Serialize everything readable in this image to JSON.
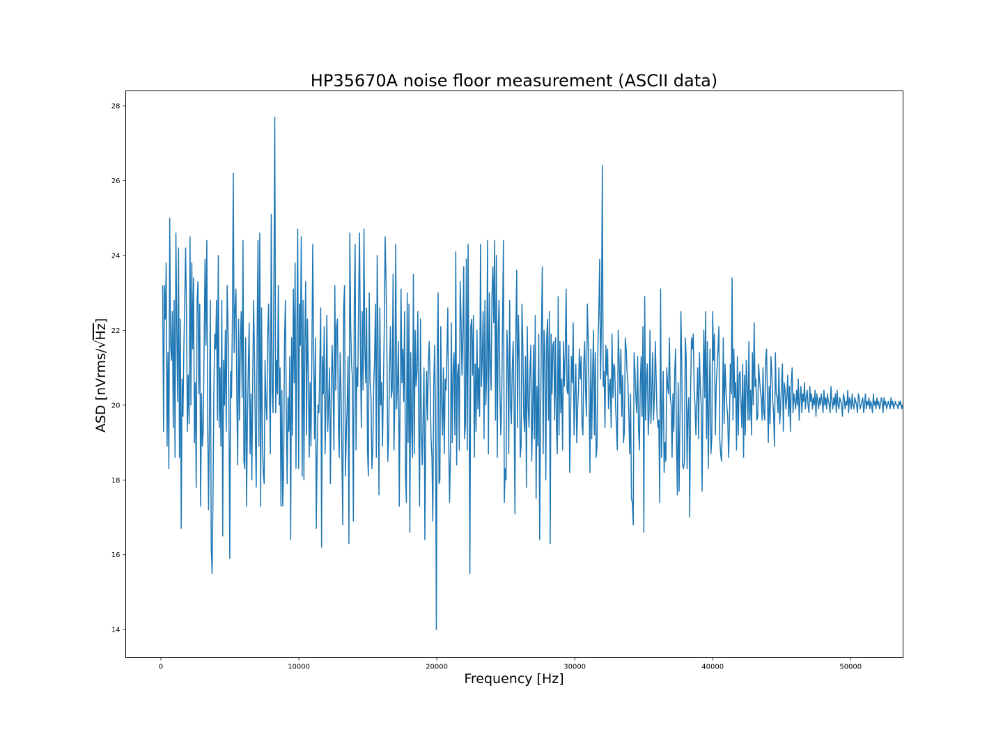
{
  "chart_data": {
    "type": "line",
    "title": "HP35670A noise floor measurement (ASCII data)",
    "xlabel": "Frequency [Hz]",
    "ylabel": "ASD [nVrms/√Hz]",
    "ylabel_parts": {
      "prefix": "ASD [nVrms/",
      "radical": "√",
      "radicand": "Hz",
      "suffix": "]"
    },
    "xlim": [
      -2550,
      53800
    ],
    "ylim": [
      13.25,
      28.4
    ],
    "xticks": [
      0,
      10000,
      20000,
      30000,
      40000,
      50000
    ],
    "yticks": [
      14,
      16,
      18,
      20,
      22,
      24,
      26,
      28
    ],
    "grid": false,
    "legend": "none",
    "series": [
      {
        "color": "#1f77b4",
        "x_start": 128,
        "x_step": 64,
        "values": [
          23.2,
          19.3,
          23.2,
          22.3,
          23.8,
          18.9,
          21.4,
          18.3,
          25.0,
          21.6,
          21.2,
          22.5,
          19.4,
          22.8,
          18.6,
          24.6,
          22.0,
          20.1,
          24.2,
          18.6,
          22.3,
          16.7,
          20.7,
          19.7,
          21.5,
          22.8,
          24.2,
          22.4,
          19.3,
          20.8,
          19.5,
          24.5,
          20.0,
          23.8,
          21.5,
          23.4,
          19.0,
          20.6,
          17.8,
          22.8,
          23.3,
          20.3,
          22.7,
          17.3,
          20.3,
          18.9,
          19.3,
          21.7,
          23.9,
          21.6,
          24.4,
          19.5,
          17.2,
          19.8,
          22.8,
          16.2,
          15.5,
          17.5,
          20.4,
          21.9,
          21.5,
          22.8,
          19.6,
          24.0,
          19.4,
          21.0,
          18.9,
          22.8,
          16.5,
          21.2,
          20.0,
          22.0,
          19.3,
          23.2,
          22.1,
          20.3,
          15.9,
          20.9,
          20.2,
          22.3,
          26.2,
          21.4,
          22.6,
          23.1,
          20.2,
          18.4,
          22.3,
          19.6,
          21.7,
          22.5,
          20.2,
          24.4,
          18.5,
          18.3,
          21.8,
          17.3,
          19.6,
          21.0,
          22.2,
          18.7,
          20.3,
          18.0,
          20.6,
          22.8,
          21.3,
          19.2,
          17.8,
          21.9,
          24.4,
          18.9,
          24.6,
          17.3,
          22.6,
          19.0,
          18.2,
          17.9,
          21.2,
          20.0,
          19.6,
          21.9,
          22.7,
          20.4,
          18.7,
          25.1,
          20.4,
          19.8,
          23.2,
          27.7,
          19.8,
          21.2,
          20.3,
          23.2,
          20.0,
          21.0,
          17.3,
          20.4,
          17.3,
          18.2,
          21.7,
          22.8,
          20.0,
          17.9,
          20.2,
          19.3,
          21.3,
          16.4,
          21.8,
          19.2,
          23.1,
          20.6,
          23.8,
          18.3,
          21.9,
          24.7,
          18.3,
          22.7,
          21.6,
          24.5,
          18.1,
          22.8,
          18.0,
          21.7,
          23.3,
          19.2,
          22.3,
          20.9,
          18.6,
          20.6,
          18.9,
          21.4,
          24.3,
          21.5,
          19.1,
          21.8,
          16.7,
          18.8,
          20.0,
          19.8,
          21.1,
          22.6,
          16.2,
          21.3,
          20.3,
          22.1,
          18.7,
          20.2,
          22.4,
          19.3,
          20.1,
          21.0,
          17.9,
          20.4,
          21.6,
          20.6,
          18.8,
          23.2,
          20.4,
          22.1,
          22.3,
          19.6,
          18.6,
          21.4,
          20.4,
          18.7,
          16.8,
          22.6,
          23.2,
          18.1,
          19.2,
          20.0,
          21.3,
          16.3,
          24.6,
          22.1,
          21.1,
          20.7,
          16.9,
          22.7,
          24.3,
          18.8,
          21.0,
          20.5,
          22.9,
          24.6,
          21.5,
          19.4,
          22.5,
          20.4,
          24.7,
          21.5,
          20.6,
          22.6,
          18.8,
          18.1,
          23.0,
          20.6,
          20.2,
          18.3,
          18.8,
          20.5,
          21.2,
          22.7,
          18.6,
          24.0,
          21.6,
          17.6,
          22.6,
          20.0,
          20.6,
          18.9,
          20.5,
          22.0,
          24.5,
          23.3,
          21.5,
          18.5,
          19.2,
          21.0,
          22.1,
          20.2,
          20.4,
          23.5,
          18.8,
          20.1,
          24.3,
          19.9,
          20.6,
          21.7,
          17.3,
          20.4,
          23.1,
          20.6,
          21.5,
          20.1,
          22.5,
          18.2,
          17.4,
          23.0,
          19.0,
          22.7,
          16.6,
          21.4,
          19.4,
          18.6,
          23.5,
          18.7,
          22.0,
          20.5,
          20.9,
          22.5,
          19.7,
          17.3,
          22.3,
          19.3,
          18.4,
          19.7,
          21.0,
          16.4,
          19.4,
          20.9,
          19.6,
          21.2,
          21.7,
          20.5,
          19.1,
          18.6,
          16.9,
          20.4,
          21.6,
          19.9,
          14.0,
          21.3,
          23.0,
          17.9,
          18.0,
          22.1,
          20.1,
          19.2,
          21.0,
          18.7,
          20.7,
          20.4,
          21.4,
          22.6,
          19.0,
          17.4,
          18.8,
          22.2,
          19.0,
          20.9,
          21.4,
          19.2,
          24.1,
          18.4,
          20.8,
          21.1,
          18.8,
          23.3,
          22.3,
          20.8,
          21.8,
          23.7,
          19.1,
          19.5,
          23.9,
          18.8,
          24.3,
          20.4,
          15.5,
          22.1,
          22.3,
          20.8,
          22.4,
          18.6,
          21.1,
          19.3,
          22.0,
          19.9,
          21.0,
          19.7,
          24.3,
          20.5,
          21.3,
          22.5,
          19.1,
          22.8,
          20.0,
          20.8,
          24.4,
          18.7,
          23.0,
          21.2,
          20.4,
          22.9,
          23.7,
          22.2,
          24.4,
          19.6,
          24.0,
          18.6,
          21.9,
          22.8,
          20.4,
          19.2,
          20.1,
          22.3,
          24.4,
          17.4,
          18.3,
          18.0,
          22.0,
          21.2,
          18.7,
          22.8,
          20.0,
          19.5,
          21.0,
          21.7,
          20.1,
          17.1,
          21.9,
          23.6,
          19.4,
          22.4,
          21.2,
          18.6,
          18.9,
          22.7,
          21.6,
          19.7,
          19.3,
          21.3,
          17.8,
          22.1,
          20.0,
          19.4,
          20.9,
          21.6,
          18.5,
          19.7,
          21.6,
          19.1,
          22.4,
          17.5,
          20.5,
          18.9,
          21.9,
          16.4,
          19.5,
          21.9,
          23.7,
          18.7,
          22.0,
          21.4,
          18.0,
          21.8,
          22.3,
          19.6,
          22.5,
          16.3,
          21.9,
          20.3,
          21.6,
          21.7,
          19.6,
          21.8,
          19.4,
          18.7,
          22.9,
          19.2,
          21.7,
          19.8,
          20.7,
          18.8,
          21.7,
          20.5,
          21.4,
          23.1,
          20.4,
          20.3,
          21.6,
          18.2,
          19.5,
          21.3,
          20.6,
          22.2,
          19.2,
          20.3,
          21.1,
          19.0,
          19.9,
          20.4,
          21.5,
          20.7,
          21.3,
          19.5,
          19.2,
          21.1,
          21.7,
          20.4,
          19.7,
          22.7,
          21.8,
          20.3,
          18.2,
          21.5,
          19.1,
          20.8,
          22.0,
          19.2,
          21.4,
          18.6,
          18.9,
          21.6,
          22.4,
          23.9,
          20.7,
          22.2,
          26.4,
          20.5,
          20.9,
          19.4,
          21.6,
          20.8,
          21.5,
          19.9,
          20.5,
          20.7,
          19.4,
          21.9,
          20.2,
          21.1,
          21.0,
          20.0,
          19.4,
          18.8,
          22.0,
          21.2,
          20.3,
          21.5,
          19.7,
          20.8,
          19.0,
          19.3,
          21.8,
          21.5,
          20.9,
          20.6,
          19.8,
          18.7,
          20.3,
          17.5,
          17.4,
          16.8,
          21.4,
          20.9,
          20.2,
          19.8,
          21.3,
          19.4,
          18.8,
          20.6,
          21.3,
          19.7,
          22.1,
          16.6,
          22.9,
          19.6,
          20.7,
          21.1,
          19.2,
          19.8,
          22.0,
          19.5,
          20.3,
          21.4,
          19.6,
          20.3,
          21.7,
          20.7,
          19.7,
          19.4,
          19.6,
          17.4,
          23.1,
          18.6,
          19.7,
          20.9,
          18.2,
          19.0,
          18.5,
          21.0,
          20.5,
          20.3,
          21.8,
          20.2,
          20.0,
          18.6,
          20.3,
          19.3,
          20.9,
          21.5,
          19.0,
          17.6,
          20.6,
          17.7,
          19.8,
          22.5,
          21.1,
          18.4,
          18.3,
          18.5,
          21.8,
          21.3,
          18.3,
          19.8,
          20.2,
          17.0,
          20.4,
          21.8,
          21.5,
          21.9,
          20.4,
          20.0,
          19.2,
          20.1,
          21.0,
          19.1,
          21.4,
          20.5,
          20.0,
          17.7,
          20.3,
          22.0,
          20.2,
          22.5,
          19.1,
          21.7,
          18.3,
          20.1,
          21.5,
          18.7,
          19.1,
          22.5,
          21.2,
          21.9,
          19.2,
          20.5,
          21.0,
          21.5,
          22.1,
          19.1,
          18.7,
          18.5,
          19.5,
          21.8,
          19.5,
          21.1,
          20.4,
          20.0,
          19.7,
          18.6,
          19.5,
          21.1,
          20.3,
          23.4,
          19.6,
          21.5,
          20.2,
          20.6,
          18.8,
          21.3,
          19.2,
          20.8,
          20.9,
          20.1,
          19.4,
          21.1,
          18.6,
          20.8,
          19.2,
          21.2,
          20.5,
          19.6,
          21.7,
          19.6,
          20.4,
          19.2,
          21.4,
          20.0,
          22.2,
          20.5,
          20.7,
          19.6,
          19.7,
          21.1,
          20.7,
          20.4,
          20.2,
          19.6,
          21.0,
          19.8,
          19.6,
          21.2,
          21.5,
          20.3,
          19.0,
          20.5,
          19.5,
          21.3,
          20.9,
          20.1,
          19.8,
          18.9,
          21.4,
          20.3,
          20.2,
          19.8,
          21.0,
          19.5,
          20.0,
          20.6,
          21.1,
          19.3,
          20.6,
          20.4,
          19.9,
          20.2,
          20.8,
          19.7,
          20.5,
          19.3,
          20.6,
          21.0,
          19.8,
          20.3,
          20.1,
          19.9,
          20.4,
          20.0,
          20.7,
          19.6,
          20.2,
          20.5,
          19.8,
          20.3,
          20.1,
          20.6,
          19.9,
          20.2,
          20.4,
          20.0,
          19.8,
          20.5,
          20.1,
          20.3,
          19.9,
          20.2,
          20.0,
          20.4,
          19.7,
          20.3,
          20.1,
          19.9,
          20.2,
          20.0,
          20.3,
          20.1,
          19.8,
          20.4,
          20.0,
          20.2,
          19.9,
          20.3,
          20.1,
          20.0,
          19.8,
          20.5,
          20.1,
          19.9,
          20.2,
          20.0,
          20.3,
          19.8,
          20.4,
          20.0,
          19.9,
          20.2,
          20.1,
          20.0,
          19.7,
          20.3,
          20.2,
          19.9,
          20.1,
          20.0,
          20.4,
          19.8,
          20.2,
          20.1,
          19.9,
          20.3,
          20.0,
          19.9,
          20.2,
          20.1,
          20.0,
          19.8,
          20.3,
          20.2,
          19.9,
          20.0,
          20.1,
          20.2,
          19.8,
          20.0,
          20.3,
          19.9,
          20.1,
          20.0,
          20.2,
          19.9,
          20.1,
          20.0,
          19.8,
          20.3,
          20.0,
          20.1,
          19.9,
          20.2,
          20.0,
          20.1,
          19.9,
          20.0,
          20.2,
          20.1,
          19.8,
          20.2,
          20.0,
          20.1,
          19.9,
          20.0,
          20.1,
          20.0,
          19.9,
          20.2,
          20.0,
          20.1,
          19.9,
          20.0,
          20.1,
          20.0,
          20.0,
          19.9,
          20.1,
          20.0,
          20.1,
          19.9,
          20.0,
          20.0,
          20.1,
          20.0,
          19.9,
          20.1,
          20.0,
          20.0,
          20.0,
          20.1,
          19.9,
          20.0,
          20.0,
          20.1,
          20.0,
          20.0,
          19.9,
          20.0,
          20.1,
          20.0,
          20.0,
          20.0,
          19.9,
          20.0,
          20.1,
          20.0,
          20.0,
          20.0,
          20.0,
          20.0,
          19.9,
          20.0,
          20.0,
          20.1,
          20.0,
          20.0,
          20.0,
          20.0,
          20.0,
          20.0,
          20.0,
          20.0,
          20.0,
          20.0,
          20.0,
          20.0,
          20.0,
          20.0,
          20.0,
          20.0,
          20.0,
          20.0,
          20.0,
          20.0,
          20.0,
          20.0,
          20.0,
          20.0,
          20.0,
          20.0,
          20.0,
          20.0,
          20.0,
          20.0,
          20.0,
          20.0,
          20.0,
          20.0,
          20.0,
          20.0,
          20.0,
          20.0,
          20.0,
          20.0,
          20.0,
          20.0,
          20.0,
          20.0,
          20.0,
          20.0,
          20.0,
          20.0,
          20.0,
          20.0,
          20.0,
          20.0,
          20.0,
          20.0,
          20.0,
          20.0,
          20.0,
          20.0,
          20.0,
          20.0,
          20.0,
          20.0,
          20.0,
          20.0,
          20.0,
          20.0,
          20.0,
          20.0,
          20.0,
          20.0,
          20.0,
          20.0,
          20.0,
          20.0,
          20.0,
          20.0,
          20.0,
          20.0,
          20.0,
          20.0,
          20.0,
          20.0,
          20.0,
          20.0,
          20.0,
          20.0,
          20.0
        ]
      }
    ]
  }
}
